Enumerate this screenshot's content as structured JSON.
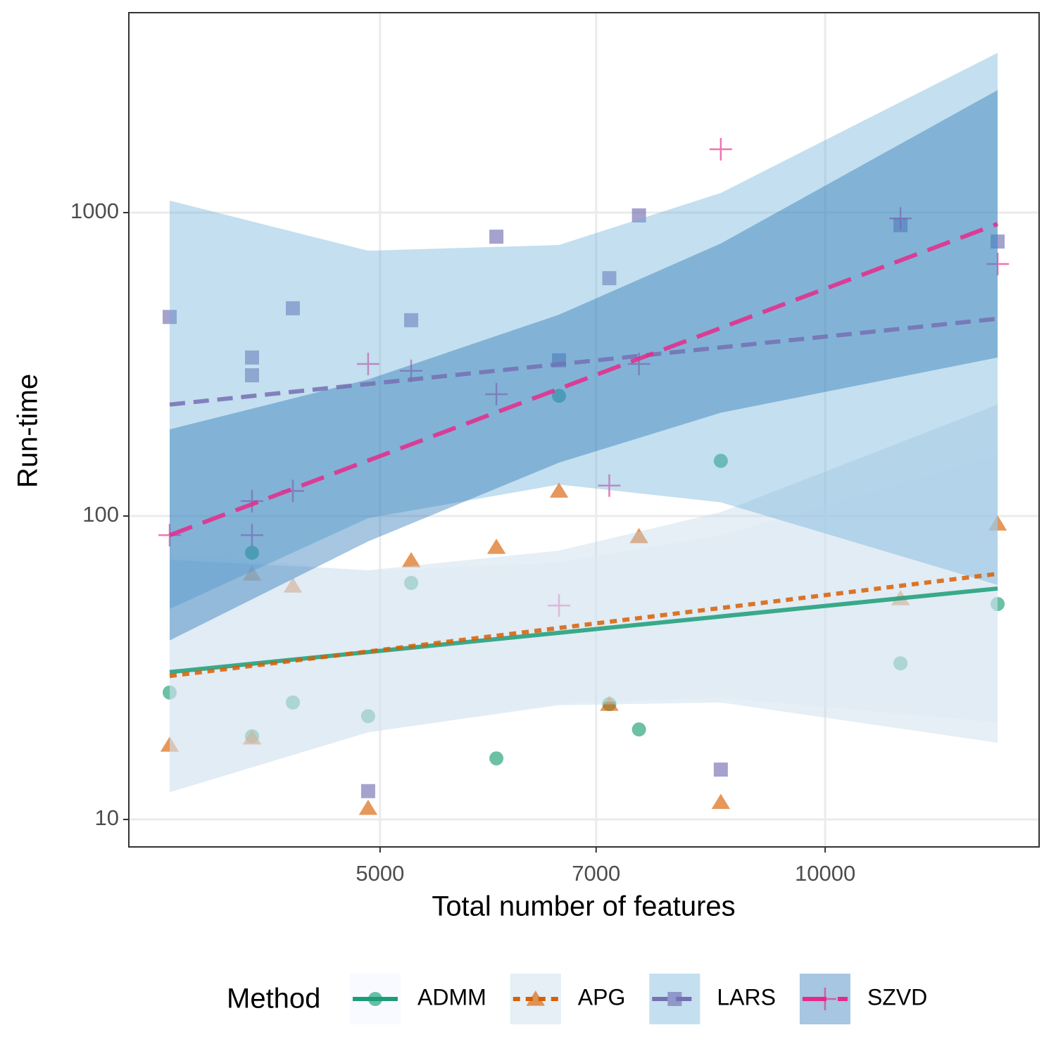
{
  "chart_data": {
    "type": "scatter",
    "x_label": "Total number of features",
    "y_label": "Run-time",
    "legend_title": "Method",
    "legend": "bottom",
    "log_x": true,
    "log_y": true,
    "grid": true,
    "xlim": [
      3381,
      13954
    ],
    "ylim": [
      8.12,
      4560
    ],
    "xticks": [
      5000,
      7000,
      10000
    ],
    "yticks": [
      10,
      100,
      1000
    ],
    "x": [
      3603,
      4096,
      4096,
      4365,
      4908,
      5248,
      5993,
      6607,
      7145,
      7483,
      8500,
      11245,
      13081
    ],
    "fit_x": [
      3603,
      13081
    ],
    "band_x": [
      3603,
      4908,
      6607,
      8500,
      13081
    ],
    "band_opacity": 0.4,
    "point_opacity": 0.65,
    "series": [
      {
        "name": "ADMM",
        "color": "#1b9e77",
        "band_color": "#eff3ff",
        "shape": "circle",
        "linetype": "solid",
        "values": [
          26.2,
          75.7,
          18.8,
          24.3,
          21.9,
          60.2,
          15.9,
          249,
          24,
          19.8,
          152,
          32.7,
          51.3
        ],
        "fit_values": [
          30.6,
          57.7
        ],
        "band_lower": [
          12.3,
          19.3,
          24.1,
          25.2,
          20.9
        ],
        "band_upper": [
          75.8,
          65.9,
          70.3,
          86.1,
          159
        ]
      },
      {
        "name": "APG",
        "color": "#d95f02",
        "band_color": "#bdd7e7",
        "shape": "triangle",
        "linetype": "dotted",
        "values": [
          17.6,
          18.6,
          64.5,
          58.9,
          10.9,
          71.4,
          79,
          121,
          24,
          85.7,
          11.4,
          53.5,
          94.3
        ],
        "fit_values": [
          29.7,
          64.5
        ],
        "band_lower": [
          12.3,
          19.4,
          23.8,
          24.3,
          17.9
        ],
        "band_upper": [
          71.8,
          66.3,
          76.9,
          103,
          233
        ]
      },
      {
        "name": "LARS",
        "color": "#7570b3",
        "band_color": "#6baed6",
        "shape": "square",
        "linetype": "dashed",
        "values": [
          453,
          333,
          291,
          484,
          12.4,
          442,
          833,
          326,
          608,
          979,
          14.6,
          909,
          803
        ],
        "fit_values": [
          233,
          447
        ],
        "band_lower": [
          49.4,
          98.4,
          127,
          111,
          59.3
        ],
        "band_upper": [
          1095,
          749,
          782,
          1161,
          3362
        ]
      },
      {
        "name": "SZVD",
        "color": "#e7298a",
        "band_color": "#2171b5",
        "shape": "cross",
        "linetype": "longdash",
        "values": [
          86.5,
          112,
          86.5,
          121,
          317,
          301,
          252,
          50.7,
          126,
          317,
          1618,
          957,
          677
        ],
        "fit_values": [
          86.5,
          918
        ],
        "band_lower": [
          38.9,
          82.5,
          150,
          219,
          333
        ],
        "band_upper": [
          193,
          282,
          461,
          791,
          2534
        ]
      }
    ]
  }
}
